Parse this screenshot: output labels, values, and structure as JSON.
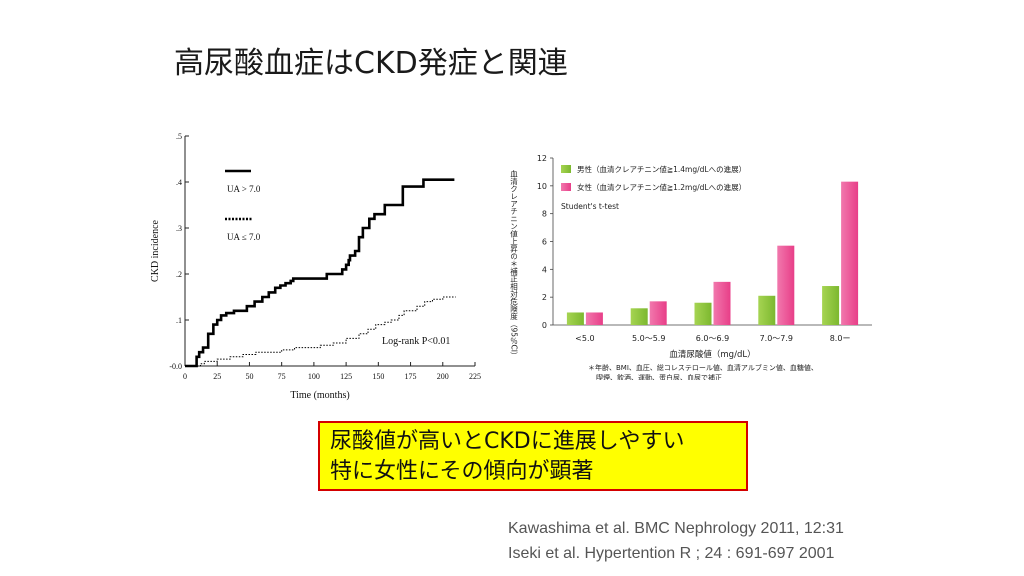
{
  "title": "高尿酸血症はCKD発症と関連",
  "callout": {
    "line1": "尿酸値が高いとCKDに進展しやすい",
    "line2": "特に女性にその傾向が顕著"
  },
  "references": [
    "Kawashima et al. BMC Nephrology 2011, 12:31",
    "Iseki et al. Hypertention R ; 24 : 691-697 2001"
  ],
  "colors": {
    "callout_bg": "#ffff00",
    "callout_border": "#d40000",
    "male_bar": "#8dc63f",
    "female_bar": "#ec4f95"
  },
  "chart_data": [
    {
      "type": "line",
      "xlabel": "Time (months)",
      "ylabel": "CKD incidence",
      "xlim": [
        0,
        225
      ],
      "ylim": [
        0,
        0.5
      ],
      "x_ticks": [
        "0",
        "25",
        "50",
        "75",
        "100",
        "125",
        "150",
        "175",
        "200",
        "225"
      ],
      "y_ticks": [
        "-0.0",
        ".1",
        ".2",
        ".3",
        ".4",
        ".5"
      ],
      "annotation": "Log-rank P<0.01",
      "grid": false,
      "legend": "top-left",
      "series": [
        {
          "name": "UA > 7.0",
          "style": "solid",
          "x": [
            0,
            8,
            9,
            11,
            14,
            18,
            22,
            25,
            28,
            32,
            38,
            48,
            54,
            60,
            65,
            70,
            74,
            78,
            80,
            82,
            84,
            90,
            107,
            110,
            119,
            122,
            125,
            127,
            128,
            132,
            135,
            138,
            143,
            147,
            155,
            160,
            169,
            180,
            185,
            209
          ],
          "y": [
            0,
            0,
            0.02,
            0.03,
            0.04,
            0.07,
            0.09,
            0.1,
            0.11,
            0.115,
            0.12,
            0.13,
            0.14,
            0.15,
            0.16,
            0.17,
            0.175,
            0.18,
            0.18,
            0.185,
            0.19,
            0.19,
            0.19,
            0.2,
            0.2,
            0.21,
            0.22,
            0.23,
            0.24,
            0.25,
            0.28,
            0.3,
            0.32,
            0.33,
            0.35,
            0.35,
            0.39,
            0.39,
            0.405,
            0.405
          ]
        },
        {
          "name": "UA ≤ 7.0",
          "style": "dotted",
          "x": [
            0,
            10,
            12,
            15,
            25,
            35,
            45,
            55,
            65,
            75,
            85,
            95,
            105,
            115,
            125,
            135,
            142,
            148,
            155,
            160,
            166,
            170,
            180,
            186,
            192,
            200,
            210
          ],
          "y": [
            0,
            0,
            0.005,
            0.01,
            0.015,
            0.02,
            0.025,
            0.03,
            0.03,
            0.035,
            0.04,
            0.04,
            0.045,
            0.05,
            0.06,
            0.07,
            0.08,
            0.09,
            0.095,
            0.1,
            0.11,
            0.12,
            0.13,
            0.14,
            0.145,
            0.15,
            0.15
          ]
        }
      ]
    },
    {
      "type": "bar",
      "categories": [
        "<5.0",
        "5.0〜5.9",
        "6.0〜6.9",
        "7.0〜7.9",
        "8.0ー"
      ],
      "xlabel": "血清尿酸値（mg/dL）",
      "ylabel": "血清クレアチニン値上昇の＊補正相対危険度（95％CI）",
      "ylim": [
        0,
        12
      ],
      "y_ticks": [
        "0",
        "2",
        "4",
        "6",
        "8",
        "10",
        "12"
      ],
      "annotation": "Student's t-test",
      "footnote": "＊年齢、BMI、血圧、総コレステロール値、血清アルブミン値、血糖値、喫煙、飲酒、運動、蛋白尿、血尿で補正",
      "grid": false,
      "legend": "top-left",
      "series": [
        {
          "name": "男性（血清クレアチニン値≧1.4mg/dLへの進展）",
          "values": [
            0.9,
            1.2,
            1.6,
            2.1,
            2.8
          ]
        },
        {
          "name": "女性（血清クレアチニン値≧1.2mg/dLへの進展）",
          "values": [
            0.9,
            1.7,
            3.1,
            5.7,
            10.3
          ]
        }
      ]
    }
  ]
}
